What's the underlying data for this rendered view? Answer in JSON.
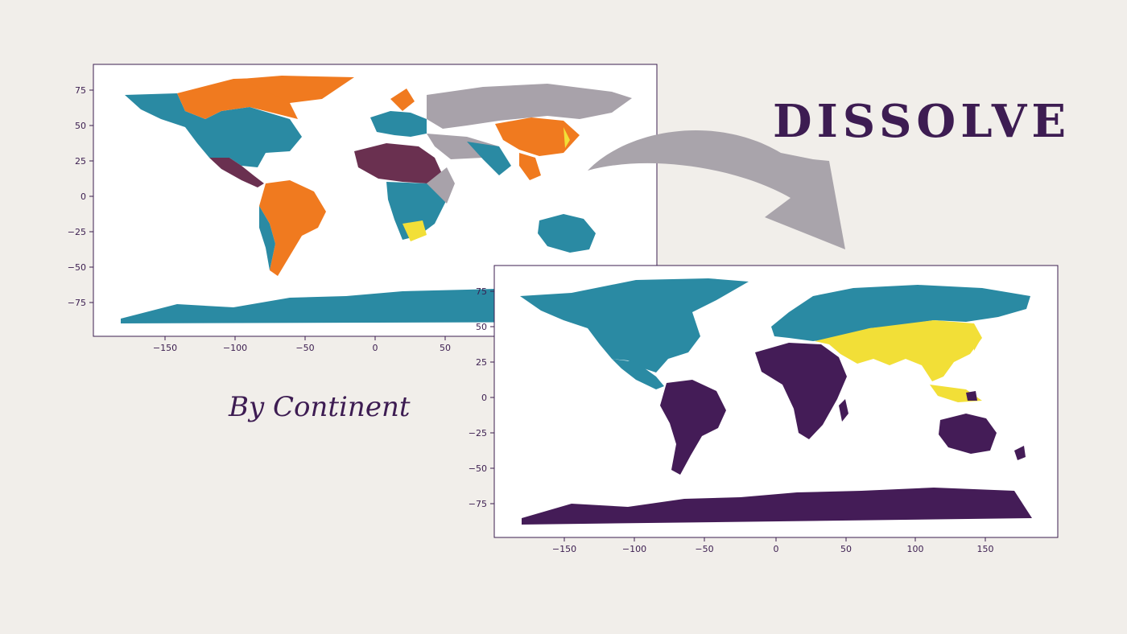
{
  "heading": "DISSOLVE",
  "caption": "By Continent",
  "colors": {
    "teal": "#2a8aa3",
    "orange": "#f07a1f",
    "grey": "#a8a2aa",
    "yellow": "#f2df37",
    "purple": "#441c57",
    "dark_purple": "#6a3050",
    "background": "#f1eeea",
    "arrow": "#a9a4ab"
  },
  "left_map": {
    "x_ticks": [
      "−150",
      "−100",
      "−50",
      "0",
      "50"
    ],
    "y_ticks": [
      "75",
      "50",
      "25",
      "0",
      "−25",
      "−50",
      "−75"
    ]
  },
  "right_map": {
    "x_ticks": [
      "−150",
      "−100",
      "−50",
      "0",
      "50",
      "100",
      "150"
    ],
    "y_ticks": [
      "75",
      "50",
      "25",
      "0",
      "−25",
      "−50",
      "−75"
    ]
  },
  "arrow_icon": "curved-arrow-icon"
}
